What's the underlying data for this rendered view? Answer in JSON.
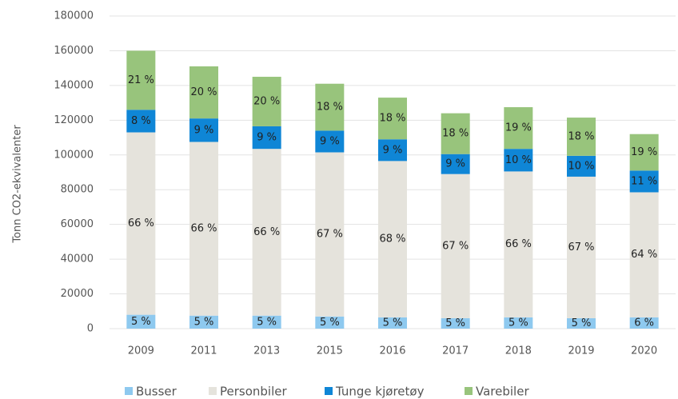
{
  "chart_data": {
    "type": "stacked_bar",
    "y_label": "Tonn CO2-ekvivalenter",
    "categories": [
      "2009",
      "2011",
      "2013",
      "2015",
      "2016",
      "2017",
      "2018",
      "2019",
      "2020"
    ],
    "series": [
      {
        "name": "Busser",
        "color": "#8ec9ef",
        "values": [
          8000,
          7500,
          7500,
          7000,
          6500,
          6000,
          6500,
          6000,
          6500
        ],
        "shares": [
          5,
          5,
          5,
          5,
          5,
          5,
          5,
          5,
          6
        ],
        "share_labels": [
          "5 %",
          "5 %",
          "5 %",
          "5 %",
          "5 %",
          "5 %",
          "5 %",
          "5 %",
          "6 %"
        ]
      },
      {
        "name": "Personbiler",
        "color": "#e5e3dc",
        "values": [
          105000,
          100000,
          96000,
          94500,
          90000,
          83000,
          84000,
          81500,
          72000
        ],
        "shares": [
          66,
          66,
          66,
          67,
          68,
          67,
          66,
          67,
          64
        ],
        "share_labels": [
          "66 %",
          "66 %",
          "66 %",
          "67 %",
          "68 %",
          "67 %",
          "66 %",
          "67 %",
          "64 %"
        ]
      },
      {
        "name": "Tunge kjøretøy",
        "color": "#0f86d6",
        "values": [
          13000,
          13500,
          13000,
          12500,
          12500,
          11500,
          13000,
          12000,
          12500
        ],
        "shares": [
          8,
          9,
          9,
          9,
          9,
          9,
          10,
          10,
          11
        ],
        "share_labels": [
          "8 %",
          "9 %",
          "9 %",
          "9 %",
          "9 %",
          "9 %",
          "10 %",
          "10 %",
          "11 %"
        ]
      },
      {
        "name": "Varebiler",
        "color": "#98c47c",
        "values": [
          34000,
          30000,
          28500,
          27000,
          24000,
          23500,
          24000,
          22000,
          21000
        ],
        "shares": [
          21,
          20,
          20,
          18,
          18,
          18,
          19,
          18,
          19
        ],
        "share_labels": [
          "21 %",
          "20 %",
          "20 %",
          "18 %",
          "18 %",
          "18 %",
          "19 %",
          "18 %",
          "19 %"
        ]
      }
    ],
    "ylim": [
      0,
      180000
    ],
    "yticks": [
      0,
      20000,
      40000,
      60000,
      80000,
      100000,
      120000,
      140000,
      160000,
      180000
    ],
    "grid": true,
    "legend": "bottom"
  }
}
